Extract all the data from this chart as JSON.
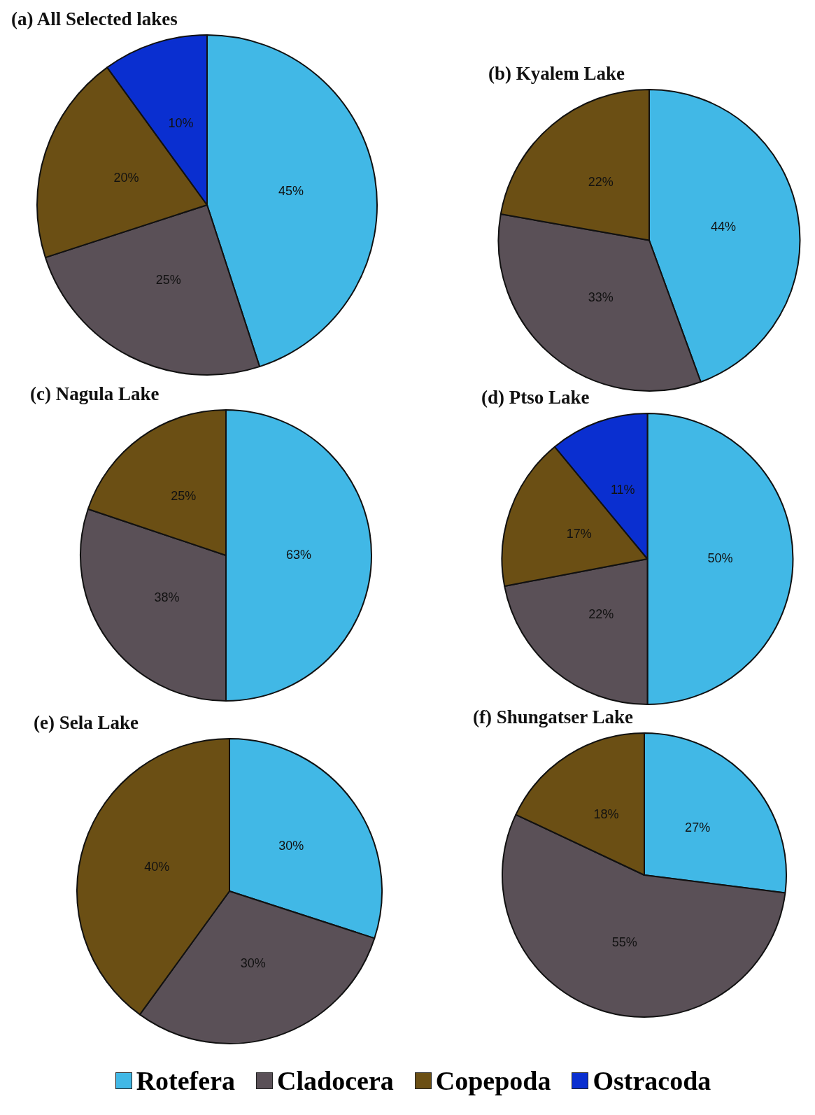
{
  "chart_data": [
    {
      "type": "pie",
      "title": "(a)  All Selected lakes",
      "categories": [
        "Rotefera",
        "Cladocera",
        "Copepoda",
        "Ostracoda"
      ],
      "values": [
        45,
        25,
        20,
        10
      ],
      "value_labels": [
        "45%",
        "25%",
        "20%",
        "10%"
      ],
      "colors": [
        "#41b8e6",
        "#5a5057",
        "#6b4f14",
        "#0a2fd0"
      ],
      "legend": "bottom"
    },
    {
      "type": "pie",
      "title": "(b)  Kyalem Lake",
      "categories": [
        null,
        null,
        null
      ],
      "values": [
        44,
        33,
        22
      ],
      "value_labels": [
        "44%",
        "33%",
        "22%"
      ],
      "colors": [
        "#41b8e6",
        "#5a5057",
        "#6b4f14"
      ]
    },
    {
      "type": "pie",
      "title": "(c)  Nagula Lake",
      "categories": [
        null,
        null,
        null
      ],
      "values": [
        63,
        38,
        25
      ],
      "value_labels": [
        "63%",
        "38%",
        "25%"
      ],
      "colors": [
        "#41b8e6",
        "#5a5057",
        "#6b4f14"
      ]
    },
    {
      "type": "pie",
      "title": "(d)  Ptso Lake",
      "categories": [
        null,
        null,
        null,
        null
      ],
      "values": [
        50,
        22,
        17,
        11
      ],
      "value_labels": [
        "50%",
        "22%",
        "17%",
        "11%"
      ],
      "colors": [
        "#41b8e6",
        "#5a5057",
        "#6b4f14",
        "#0a2fd0"
      ]
    },
    {
      "type": "pie",
      "title": "(e)  Sela Lake",
      "categories": [
        null,
        null,
        null
      ],
      "values": [
        30,
        30,
        40
      ],
      "value_labels": [
        "30%",
        "30%",
        "40%"
      ],
      "colors": [
        "#41b8e6",
        "#5a5057",
        "#6b4f14"
      ]
    },
    {
      "type": "pie",
      "title": "(f)  Shungatser Lake",
      "categories": [
        null,
        null,
        null
      ],
      "values": [
        27,
        55,
        18
      ],
      "value_labels": [
        "27%",
        "55%",
        "18%"
      ],
      "colors": [
        "#41b8e6",
        "#5a5057",
        "#6b4f14"
      ]
    }
  ]
}
